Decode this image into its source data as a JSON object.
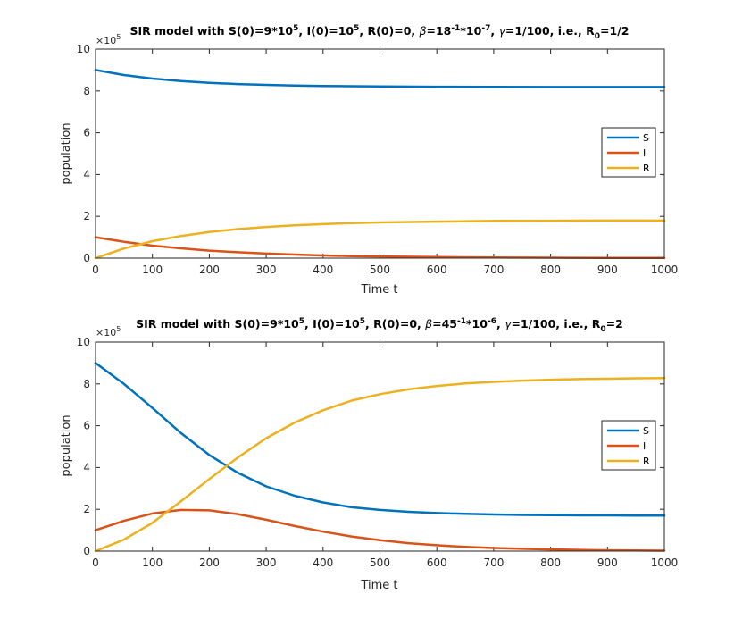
{
  "chart_data": [
    {
      "type": "line",
      "title": "SIR model with S(0)=9*10^5, I(0)=10^5, R(0)=0, β=18^-1*10^-7, γ=1/100, i.e., R_0=1/2",
      "title_parts": {
        "p1": "SIR model with S(0)=9*10",
        "e1": "5",
        "p2": ", I(0)=10",
        "e2": "5",
        "p3": ", R(0)=0, ",
        "beta": "β",
        "p4": "=18",
        "e3": "-1",
        "p5": "*10",
        "e4": "-7",
        "p6": ", ",
        "gamma": "γ",
        "p7": "=1/100, i.e., R",
        "sub": "0",
        "p8": "=1/2"
      },
      "xlabel": "Time t",
      "ylabel": "population",
      "y_exponent_label": {
        "base": "×10",
        "exp": "5"
      },
      "xlim": [
        0,
        1000
      ],
      "ylim": [
        0,
        10
      ],
      "xticks": [
        "0",
        "100",
        "200",
        "300",
        "400",
        "500",
        "600",
        "700",
        "800",
        "900",
        "1000"
      ],
      "yticks": [
        "0",
        "2",
        "4",
        "6",
        "8",
        "10"
      ],
      "legend_position": "right",
      "x": [
        0,
        50,
        100,
        150,
        200,
        250,
        300,
        350,
        400,
        450,
        500,
        600,
        700,
        800,
        900,
        1000
      ],
      "series": [
        {
          "name": "S",
          "color": "#0072BD",
          "values": [
            9.0,
            8.76,
            8.59,
            8.47,
            8.39,
            8.33,
            8.29,
            8.26,
            8.24,
            8.225,
            8.215,
            8.2,
            8.195,
            8.19,
            8.19,
            8.19
          ]
        },
        {
          "name": "I",
          "color": "#D95319",
          "values": [
            1.0,
            0.78,
            0.6,
            0.47,
            0.36,
            0.28,
            0.22,
            0.17,
            0.13,
            0.1,
            0.08,
            0.05,
            0.03,
            0.02,
            0.01,
            0.01
          ]
        },
        {
          "name": "R",
          "color": "#EDB120",
          "values": [
            0.0,
            0.46,
            0.81,
            1.06,
            1.25,
            1.39,
            1.49,
            1.57,
            1.63,
            1.68,
            1.71,
            1.75,
            1.78,
            1.79,
            1.8,
            1.8
          ]
        }
      ]
    },
    {
      "type": "line",
      "title": "SIR model with S(0)=9*10^5, I(0)=10^5, R(0)=0, β=45^-1*10^-6, γ=1/100, i.e., R_0=2",
      "title_parts": {
        "p1": "SIR model with S(0)=9*10",
        "e1": "5",
        "p2": ", I(0)=10",
        "e2": "5",
        "p3": ", R(0)=0, ",
        "beta": "β",
        "p4": "=45",
        "e3": "-1",
        "p5": "*10",
        "e4": "-6",
        "p6": ", ",
        "gamma": "γ",
        "p7": "=1/100, i.e., R",
        "sub": "0",
        "p8": "=2"
      },
      "xlabel": "Time t",
      "ylabel": "population",
      "y_exponent_label": {
        "base": "×10",
        "exp": "5"
      },
      "xlim": [
        0,
        1000
      ],
      "ylim": [
        0,
        10
      ],
      "xticks": [
        "0",
        "100",
        "200",
        "300",
        "400",
        "500",
        "600",
        "700",
        "800",
        "900",
        "1000"
      ],
      "yticks": [
        "0",
        "2",
        "4",
        "6",
        "8",
        "10"
      ],
      "legend_position": "right",
      "x": [
        0,
        50,
        100,
        150,
        200,
        250,
        300,
        350,
        400,
        450,
        500,
        550,
        600,
        650,
        700,
        750,
        800,
        850,
        900,
        950,
        1000
      ],
      "series": [
        {
          "name": "S",
          "color": "#0072BD",
          "values": [
            9.0,
            8.0,
            6.85,
            5.65,
            4.6,
            3.75,
            3.1,
            2.65,
            2.33,
            2.1,
            1.97,
            1.88,
            1.82,
            1.78,
            1.75,
            1.73,
            1.72,
            1.71,
            1.71,
            1.7,
            1.7
          ]
        },
        {
          "name": "I",
          "color": "#D95319",
          "values": [
            1.0,
            1.45,
            1.8,
            1.97,
            1.95,
            1.77,
            1.5,
            1.2,
            0.93,
            0.7,
            0.52,
            0.38,
            0.28,
            0.2,
            0.15,
            0.11,
            0.08,
            0.06,
            0.04,
            0.03,
            0.02
          ]
        },
        {
          "name": "R",
          "color": "#EDB120",
          "values": [
            0.0,
            0.55,
            1.35,
            2.38,
            3.45,
            4.48,
            5.4,
            6.15,
            6.74,
            7.2,
            7.51,
            7.74,
            7.9,
            8.02,
            8.1,
            8.16,
            8.2,
            8.23,
            8.25,
            8.27,
            8.28
          ]
        }
      ]
    }
  ]
}
